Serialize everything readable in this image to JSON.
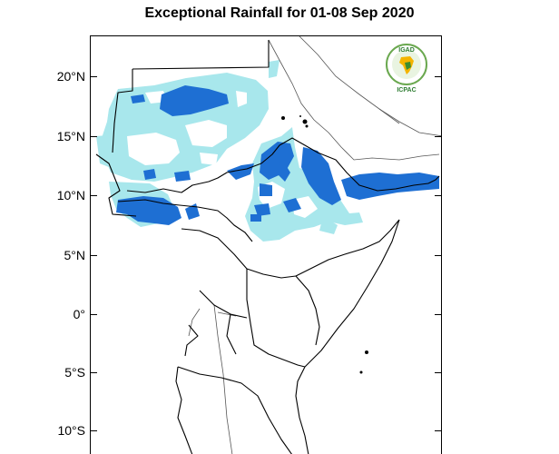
{
  "title": "Exceptional Rainfall for 01-08 Sep 2020",
  "lat_labels": [
    "20°N",
    "15°N",
    "10°N",
    "5°N",
    "0°",
    "5°S",
    "10°S"
  ],
  "logo": {
    "badge_text": "IGAD",
    "subtitle": "ICPAC"
  },
  "colors": {
    "exceptional_light": "#a8e7ec",
    "exceptional_dark": "#1e6fd3",
    "land_border": "#000000",
    "coast_line": "#555555"
  },
  "map": {
    "region": "Greater Horn of Africa",
    "lat_range": [
      -11.5,
      23.5
    ],
    "period": "01-08 Sep 2020"
  }
}
